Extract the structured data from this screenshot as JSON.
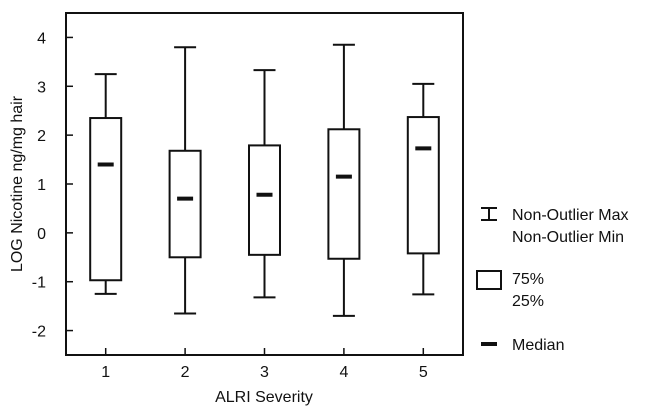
{
  "chart_data": {
    "type": "boxplot",
    "xlabel": "ALRI Severity",
    "ylabel": "LOG Nicotine ng/mg hair",
    "ylim": [
      -2.5,
      4.5
    ],
    "yticks": [
      -2,
      -1,
      0,
      1,
      2,
      3,
      4
    ],
    "grid": false,
    "legend_position": "right",
    "categories": [
      "1",
      "2",
      "3",
      "4",
      "5"
    ],
    "boxes": [
      {
        "category": "1",
        "whisker_min": -1.25,
        "q1": -0.97,
        "median": 1.4,
        "q3": 2.35,
        "whisker_max": 3.25
      },
      {
        "category": "2",
        "whisker_min": -1.65,
        "q1": -0.5,
        "median": 0.7,
        "q3": 1.68,
        "whisker_max": 3.8
      },
      {
        "category": "3",
        "whisker_min": -1.32,
        "q1": -0.45,
        "median": 0.78,
        "q3": 1.79,
        "whisker_max": 3.33
      },
      {
        "category": "4",
        "whisker_min": -1.7,
        "q1": -0.53,
        "median": 1.15,
        "q3": 2.12,
        "whisker_max": 3.85
      },
      {
        "category": "5",
        "whisker_min": -1.26,
        "q1": -0.42,
        "median": 1.73,
        "q3": 2.37,
        "whisker_max": 3.05
      }
    ],
    "legend": [
      {
        "symbol": "whisker",
        "lines": [
          "Non-Outlier Max",
          "Non-Outlier Min"
        ]
      },
      {
        "symbol": "box",
        "lines": [
          "75%",
          "25%"
        ]
      },
      {
        "symbol": "median",
        "lines": [
          "Median"
        ]
      }
    ]
  }
}
